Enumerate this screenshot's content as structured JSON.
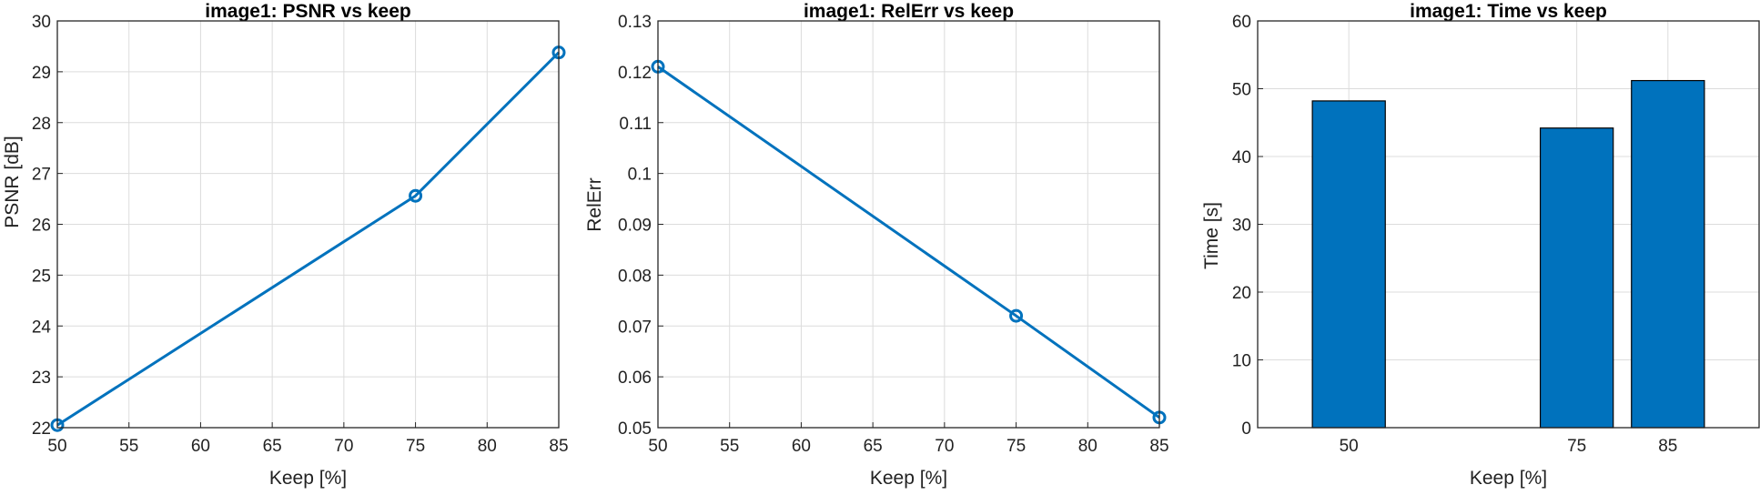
{
  "colors": {
    "series": "#0072BD",
    "grid": "#dcdcdc",
    "axis": "#262626"
  },
  "chart_data": [
    {
      "type": "line",
      "title": "image1: PSNR vs keep",
      "xlabel": "Keep [%]",
      "ylabel": "PSNR [dB]",
      "xlim": [
        50,
        85
      ],
      "ylim": [
        22,
        30
      ],
      "xticks": [
        "50",
        "55",
        "60",
        "65",
        "70",
        "75",
        "80",
        "85"
      ],
      "yticks": [
        "22",
        "23",
        "24",
        "25",
        "26",
        "27",
        "28",
        "29",
        "30"
      ],
      "x": [
        50,
        75,
        85
      ],
      "values": [
        22.05,
        26.56,
        29.38
      ],
      "marker": "circle",
      "grid": true
    },
    {
      "type": "line",
      "title": "image1: RelErr vs keep",
      "xlabel": "Keep [%]",
      "ylabel": "RelErr",
      "xlim": [
        50,
        85
      ],
      "ylim": [
        0.05,
        0.13
      ],
      "xticks": [
        "50",
        "55",
        "60",
        "65",
        "70",
        "75",
        "80",
        "85"
      ],
      "yticks": [
        "0.05",
        "0.06",
        "0.07",
        "0.08",
        "0.09",
        "0.1",
        "0.11",
        "0.12",
        "0.13"
      ],
      "x": [
        50,
        75,
        85
      ],
      "values": [
        0.121,
        0.072,
        0.052
      ],
      "marker": "circle",
      "grid": true
    },
    {
      "type": "bar",
      "title": "image1: Time vs keep",
      "xlabel": "Keep [%]",
      "ylabel": "Time [s]",
      "xlim": [
        40,
        95
      ],
      "ylim": [
        0,
        60
      ],
      "xticks": [
        "50",
        "75",
        "85"
      ],
      "yticks": [
        "0",
        "10",
        "20",
        "30",
        "40",
        "50",
        "60"
      ],
      "x": [
        50,
        75,
        85
      ],
      "values": [
        48.2,
        44.2,
        51.2
      ],
      "bar_width": 8,
      "grid": true
    }
  ]
}
